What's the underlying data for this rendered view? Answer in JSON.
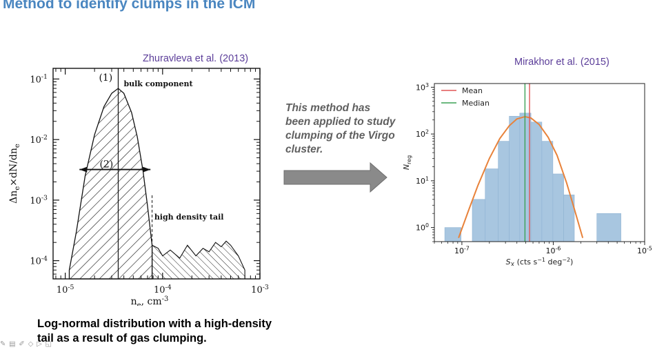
{
  "slide": {
    "title": "Method to identify clumps in the ICM",
    "method_note": "This method has been applied to study clumping of the Virgo cluster.",
    "caption": "Log-normal distribution with a high-density tail as a result of gas clumping."
  },
  "left_panel": {
    "citation": "Zhuravleva et al. (2013)"
  },
  "right_panel": {
    "citation": "Mirakhor et al. (2015)"
  },
  "colors": {
    "title": "#4a86c0",
    "citation": "#5b3d99",
    "arrow": "#8a8a8a",
    "hist_fill": "#a8c6e0",
    "fit_curve": "#e8823a",
    "mean_line": "#e05555",
    "median_line": "#3aa055"
  },
  "toolbar_icons": [
    "edit-icon",
    "slides-icon",
    "pen-icon",
    "pointer-icon",
    "play-icon",
    "camera-icon"
  ],
  "chart_data": [
    {
      "type": "area",
      "xlabel": "n_e, cm^-3",
      "ylabel": "Δn_e×dN/dn_e",
      "xscale": "log",
      "yscale": "log",
      "xlim": [
        7.5e-06,
        0.001
      ],
      "ylim": [
        5e-05,
        0.15
      ],
      "x_ticks": [
        "10^-5",
        "10^-4",
        "10^-3"
      ],
      "y_ticks": [
        "10^-1",
        "10^-2",
        "10^-3",
        "10^-4"
      ],
      "annotations": [
        "(1)",
        "(2)",
        "bulk component",
        "high density tail"
      ],
      "series": [
        {
          "name": "bulk component",
          "x": [
            1.1e-05,
            1.3e-05,
            1.6e-05,
            2e-05,
            2.5e-05,
            3e-05,
            3.5e-05,
            4e-05,
            4.8e-05,
            5.5e-05,
            6.3e-05,
            7e-05,
            7.8e-05
          ],
          "values": [
            7e-05,
            0.0003,
            0.0025,
            0.012,
            0.035,
            0.058,
            0.07,
            0.058,
            0.028,
            0.011,
            0.003,
            0.0008,
            0.00018
          ]
        },
        {
          "name": "high density tail",
          "x": [
            7.8e-05,
            9e-05,
            0.0001,
            0.00012,
            0.00015,
            0.00018,
            0.00022,
            0.00026,
            0.0003,
            0.00035,
            0.0004,
            0.00045,
            0.0005,
            0.0006,
            0.0007
          ],
          "values": [
            0.00018,
            0.00016,
            0.00012,
            0.00015,
            0.00011,
            0.00018,
            0.00012,
            0.00016,
            0.00014,
            0.0002,
            0.00017,
            0.00021,
            0.00018,
            0.00012,
            7e-05
          ]
        }
      ],
      "markers": [
        {
          "label": "(1)",
          "x": 3.5e-05
        },
        {
          "label": "(2)",
          "x_range": [
            1.4e-05,
            7.5e-05
          ],
          "y": 0.0032
        }
      ]
    },
    {
      "type": "bar",
      "xlabel": "S_X (cts s^-1 deg^-2)",
      "ylabel": "N_reg",
      "xscale": "log",
      "yscale": "log",
      "xlim": [
        5e-08,
        1e-05
      ],
      "ylim": [
        0.5,
        1200
      ],
      "x_ticks": [
        "10^-7",
        "10^-6",
        "10^-5"
      ],
      "y_ticks": [
        "10^0",
        "10^1",
        "10^2",
        "10^3"
      ],
      "legend": {
        "position": "top-left",
        "entries": [
          "Mean",
          "Median"
        ]
      },
      "bin_edges": [
        6.5e-08,
        9.8e-08,
        1.3e-07,
        1.8e-07,
        2.5e-07,
        3.3e-07,
        4.3e-07,
        5.7e-07,
        7.5e-07,
        9.9e-07,
        1.3e-06,
        1.7e-06,
        2.3e-06,
        3e-06,
        5.5e-06
      ],
      "values": [
        1,
        0,
        4,
        18,
        70,
        240,
        280,
        180,
        70,
        14,
        5,
        0,
        0,
        2
      ],
      "fit_curve_points": [
        [
          9.2e-08,
          0.6
        ],
        [
          1.2e-07,
          2.5
        ],
        [
          1.5e-07,
          8
        ],
        [
          2e-07,
          30
        ],
        [
          2.6e-07,
          80
        ],
        [
          3.3e-07,
          150
        ],
        [
          4e-07,
          210
        ],
        [
          4.9e-07,
          235
        ],
        [
          5.7e-07,
          220
        ],
        [
          7e-07,
          160
        ],
        [
          8.8e-07,
          85
        ],
        [
          1.1e-06,
          35
        ],
        [
          1.4e-06,
          9
        ],
        [
          1.7e-06,
          2.5
        ],
        [
          2.1e-06,
          0.6
        ]
      ],
      "mean": 5.5e-07,
      "median": 4.9e-07
    }
  ]
}
